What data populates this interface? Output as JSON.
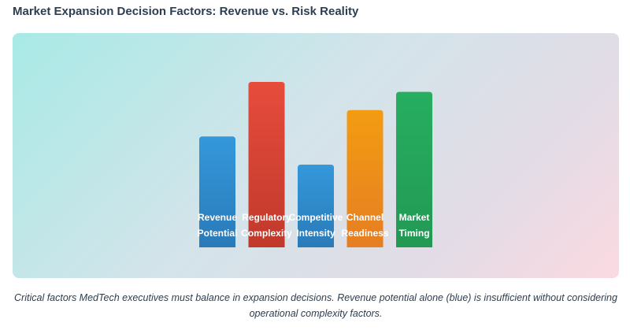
{
  "page": {
    "title": "Market Expansion Decision Factors: Revenue vs. Risk Reality",
    "caption": "Critical factors MedTech executives must balance in expansion decisions. Revenue potential alone (blue) is insufficient without considering operational complexity factors."
  },
  "colors": {
    "blue": "#2e86c9",
    "red": "#d6412f",
    "orange": "#ef8e1e",
    "green": "#27a85a"
  },
  "chart_data": {
    "type": "bar",
    "title": "",
    "xlabel": "",
    "ylabel": "",
    "grid": false,
    "legend": "none",
    "ylim": [
      0,
      100
    ],
    "categories": [
      [
        "Revenue",
        "Potential"
      ],
      [
        "Regulatory",
        "Complexity"
      ],
      [
        "Competitive",
        "Intensity"
      ],
      [
        "Channel",
        "Readiness"
      ],
      [
        "Market",
        "Timing"
      ]
    ],
    "values": [
      67,
      100,
      50,
      83,
      94
    ],
    "bar_colors": [
      [
        "#3498db",
        "#2a7ab8"
      ],
      [
        "#e74c3c",
        "#c0392b"
      ],
      [
        "#3498db",
        "#2a7ab8"
      ],
      [
        "#f39c12",
        "#e67e22"
      ],
      [
        "#27ae60",
        "#229954"
      ]
    ]
  }
}
